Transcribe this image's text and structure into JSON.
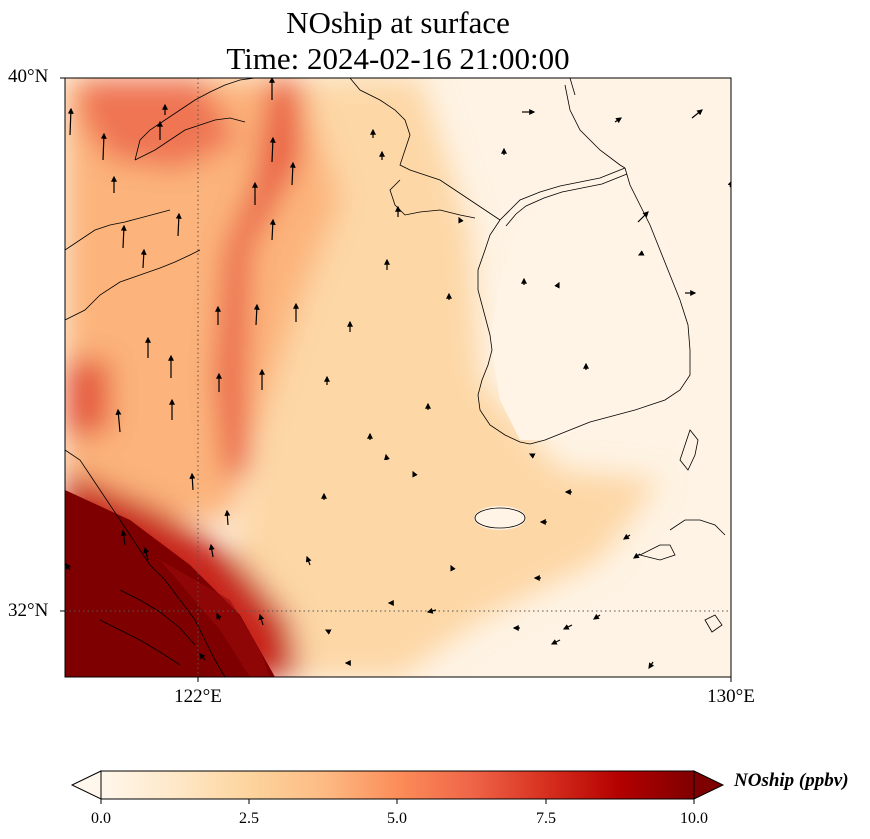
{
  "title": {
    "line1": "NOship at surface",
    "line2": "Time: 2024-02-16 21:00:00"
  },
  "map": {
    "type": "filled-contour-with-vectors",
    "extent": {
      "lon": [
        120,
        130
      ],
      "lat": [
        31,
        40
      ]
    },
    "lat_ticks": [
      {
        "value": 40,
        "label": "40°N"
      },
      {
        "value": 32,
        "label": "32°N"
      }
    ],
    "lon_ticks": [
      {
        "value": 122,
        "label": "122°E"
      },
      {
        "value": 130,
        "label": "130°E"
      }
    ],
    "gridlines": "dotted at 122°E and 32°N",
    "field": "NOship",
    "colormap": "OrRd",
    "regions": [
      {
        "name": "shanghai-high",
        "value": 10.0
      },
      {
        "name": "coastal-plume",
        "value": 8.5
      },
      {
        "name": "yellow-sea-band",
        "value": 6.5
      },
      {
        "name": "bohai-strait",
        "value": 7.0
      },
      {
        "name": "north-china-inland",
        "value": 5.0
      },
      {
        "name": "central-yellow-sea",
        "value": 2.5
      },
      {
        "name": "korea-jeju",
        "value": 0.4
      }
    ],
    "arrow_layer": "wind vectors (mostly northward over the Yellow Sea)"
  },
  "colorbar": {
    "min": 0.0,
    "max": 10.0,
    "extend": "both",
    "ticks": [
      "0.0",
      "2.5",
      "5.0",
      "7.5",
      "10.0"
    ],
    "label": "NOship (ppbv)",
    "colors": [
      "#fff7ec",
      "#fee8c8",
      "#fdd49e",
      "#fdbb84",
      "#fc8d59",
      "#ef6548",
      "#d7301f",
      "#b30000",
      "#7f0000"
    ]
  }
}
